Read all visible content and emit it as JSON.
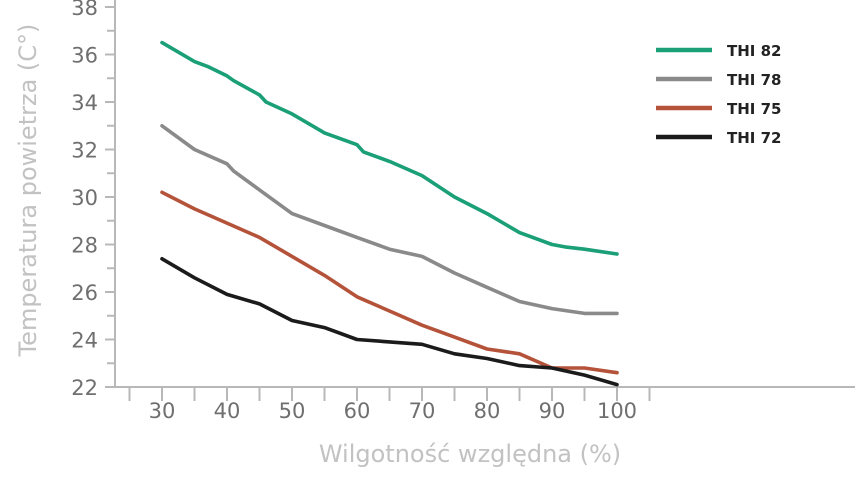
{
  "chart_data": {
    "type": "line",
    "title": "",
    "xlabel": "Wilgotność względna (%)",
    "ylabel": "Temperatura powietrza (C°)",
    "xlim": [
      25,
      105
    ],
    "ylim": [
      22,
      38
    ],
    "xticks": [
      30,
      40,
      50,
      60,
      70,
      80,
      90,
      100
    ],
    "yticks": [
      22,
      24,
      26,
      28,
      30,
      32,
      34,
      36,
      38
    ],
    "grid": false,
    "legend_position": "top-right",
    "series": [
      {
        "name": "THI 82",
        "color": "#1a9f77",
        "x": [
          30,
          35,
          37,
          40,
          41,
          45,
          46,
          50,
          55,
          60,
          61,
          65,
          70,
          75,
          80,
          85,
          90,
          92,
          95,
          100
        ],
        "y": [
          36.5,
          35.7,
          35.5,
          35.1,
          34.9,
          34.3,
          34.0,
          33.5,
          32.7,
          32.2,
          31.9,
          31.5,
          30.9,
          30.0,
          29.3,
          28.5,
          28.0,
          27.9,
          27.8,
          27.6
        ]
      },
      {
        "name": "THI 78",
        "color": "#8a8a8a",
        "x": [
          30,
          35,
          40,
          41,
          45,
          50,
          55,
          60,
          65,
          70,
          75,
          80,
          85,
          90,
          95,
          100
        ],
        "y": [
          33.0,
          32.0,
          31.4,
          31.1,
          30.3,
          29.3,
          28.8,
          28.3,
          27.8,
          27.5,
          26.8,
          26.2,
          25.6,
          25.3,
          25.1,
          25.1
        ]
      },
      {
        "name": "THI 75",
        "color": "#b4533a",
        "x": [
          30,
          35,
          40,
          45,
          50,
          55,
          60,
          65,
          70,
          75,
          80,
          85,
          90,
          95,
          100
        ],
        "y": [
          30.2,
          29.5,
          28.9,
          28.3,
          27.5,
          26.7,
          25.8,
          25.2,
          24.6,
          24.1,
          23.6,
          23.4,
          22.8,
          22.8,
          22.6
        ]
      },
      {
        "name": "THI 72",
        "color": "#1b1b1b",
        "x": [
          30,
          35,
          40,
          45,
          50,
          55,
          60,
          65,
          70,
          75,
          80,
          85,
          90,
          95,
          100
        ],
        "y": [
          27.4,
          26.6,
          25.9,
          25.5,
          24.8,
          24.5,
          24.0,
          23.9,
          23.8,
          23.4,
          23.2,
          22.9,
          22.8,
          22.5,
          22.1
        ]
      }
    ]
  }
}
